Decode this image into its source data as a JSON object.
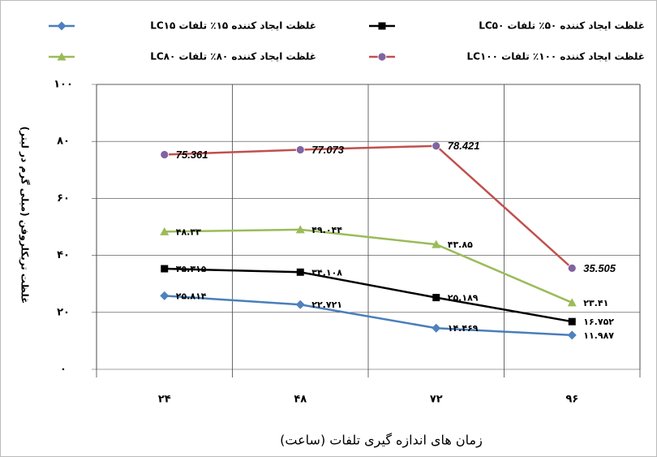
{
  "chart_data": {
    "type": "line",
    "y_label": "غلظت تریکلروفن (میلی گرم در لیتر)",
    "x_label": "زمان های اندازه گیری تلفات (ساعت)",
    "categories": [
      "۲۴",
      "۴۸",
      "۷۲",
      "۹۶"
    ],
    "ylim": [
      0,
      100
    ],
    "yticks": [
      {
        "value": 0,
        "label": "۰"
      },
      {
        "value": 20,
        "label": "۲۰"
      },
      {
        "value": 40,
        "label": "۴۰"
      },
      {
        "value": 60,
        "label": "۶۰"
      },
      {
        "value": 80,
        "label": "۸۰"
      },
      {
        "value": 100,
        "label": "۱۰۰"
      }
    ],
    "grid": true,
    "series": [
      {
        "name": "غلظت ایجاد کننده ۱۵٪ تلفات LC۱۵",
        "color": "#4a7ebb",
        "marker_color": "#4f81bd",
        "marker": "diamond",
        "values": [
          25.814,
          22.721,
          14.469,
          11.987
        ],
        "value_labels": [
          "۲۵.۸۱۴",
          "۲۲.۷۲۱",
          "۱۴.۴۶۹",
          "۱۱.۹۸۷"
        ]
      },
      {
        "name": "غلظت ایجاد کننده ۵۰٪ تلفات LC۵۰",
        "color": "#000000",
        "marker_color": "#000000",
        "marker": "square",
        "values": [
          35.315,
          34.108,
          25.189,
          16.752
        ],
        "value_labels": [
          "۳۵.۳۱۵",
          "۳۴.۱۰۸",
          "۲۵.۱۸۹",
          "۱۶.۷۵۲"
        ]
      },
      {
        "name": "غلظت ایجاد کننده ۸۰٪ تلفات LC۸۰",
        "color": "#9bbb59",
        "marker_color": "#9bbb59",
        "marker": "triangle",
        "values": [
          48.33,
          49.044,
          43.85,
          23.41
        ],
        "value_labels": [
          "۴۸.۳۳",
          "۴۹.۰۴۴",
          "۴۳.۸۵",
          "۲۳.۴۱"
        ]
      },
      {
        "name": "غلظت ایجاد کننده ۱۰۰٪ تلفات LC۱۰۰",
        "color": "#c0504d",
        "marker_color": "#8064a2",
        "marker": "circle",
        "values": [
          75.361,
          77.073,
          78.421,
          35.505
        ]
      }
    ]
  }
}
